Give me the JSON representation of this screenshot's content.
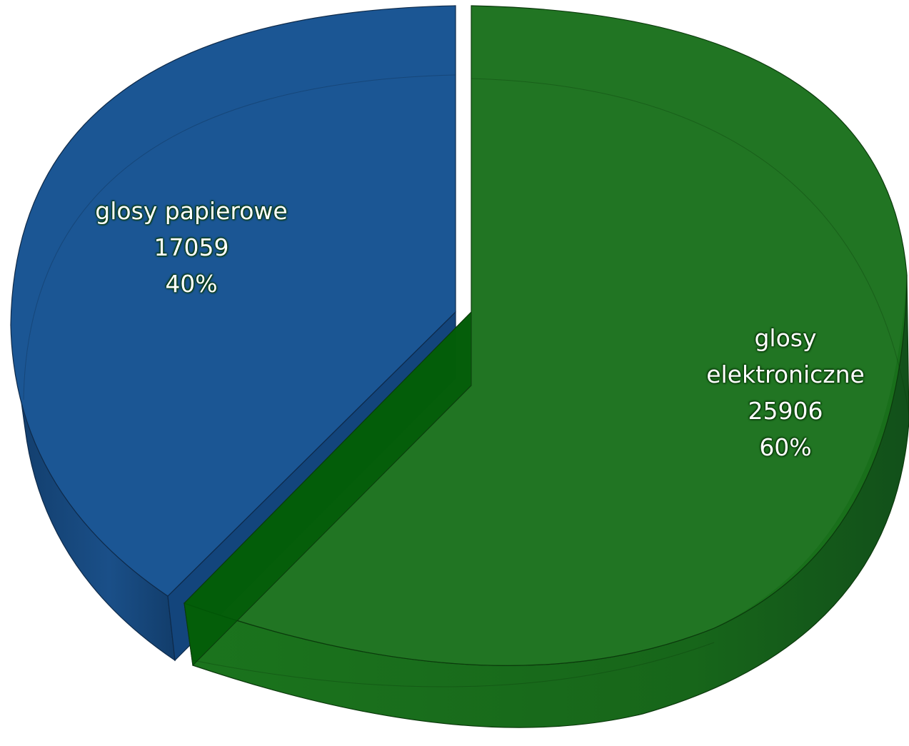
{
  "chart_data": {
    "type": "pie",
    "title": "",
    "style": "3d-exploded",
    "slices": [
      {
        "name": "glosy papierowe",
        "value": 17059,
        "percent": "40%",
        "color": "#1b5694"
      },
      {
        "name": "glosy elektroniczne",
        "value": 25906,
        "percent": "60%",
        "color": "#1a711c"
      }
    ]
  },
  "labels": {
    "paper": {
      "name": "glosy papierowe",
      "value": "17059",
      "percent": "40%"
    },
    "electronic": {
      "line1": "glosy",
      "line2": "elektroniczne",
      "value": "25906",
      "percent": "60%"
    }
  }
}
